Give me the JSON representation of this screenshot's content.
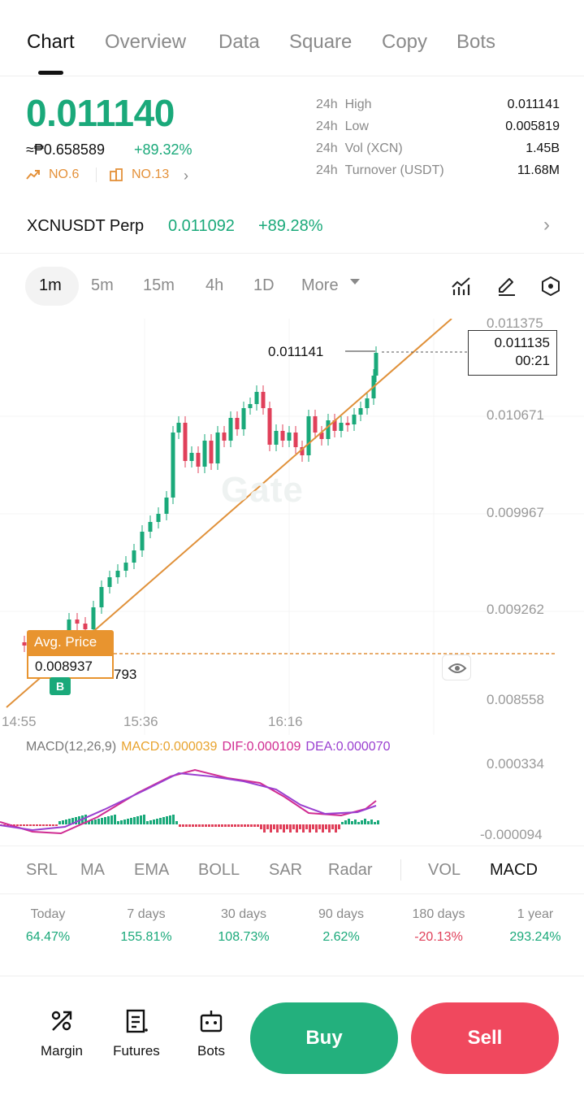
{
  "tabs": [
    "Chart",
    "Overview",
    "Data",
    "Square",
    "Copy",
    "Bots"
  ],
  "price": {
    "last": "0.011140",
    "fiat": "≈₱0.658589",
    "change_pct": "+89.32%",
    "rank_trend": "NO.6",
    "rank_sector": "NO.13"
  },
  "stats": [
    {
      "period": "24h",
      "label": "High",
      "value": "0.011141"
    },
    {
      "period": "24h",
      "label": "Low",
      "value": "0.005819"
    },
    {
      "period": "24h",
      "label": "Vol (XCN)",
      "value": "1.45B"
    },
    {
      "period": "24h",
      "label": "Turnover (USDT)",
      "value": "11.68M"
    }
  ],
  "perp": {
    "name": "XCNUSDT Perp",
    "price": "0.011092",
    "change_pct": "+89.28%"
  },
  "intervals": [
    "1m",
    "5m",
    "15m",
    "4h",
    "1D",
    "More"
  ],
  "chart": {
    "watermark": "Gate",
    "y_ticks": [
      "0.011375",
      "0.010671",
      "0.009967",
      "0.009262",
      "0.008558"
    ],
    "x_ticks": [
      "14:55",
      "15:36",
      "16:16"
    ],
    "high_marker": "0.011141",
    "last_price": "0.011135",
    "countdown": "00:21",
    "avg_price_label": "Avg. Price",
    "avg_price_value": "0.008937",
    "low_marker_suffix": "793",
    "buy_badge": "B",
    "colors": {
      "up": "#1aa97a",
      "down": "#e0405a",
      "trendline": "#e0913a"
    }
  },
  "macd": {
    "title": "MACD(12,26,9)",
    "macd": "MACD:0.000039",
    "dif": "DIF:0.000109",
    "dea": "DEA:0.000070",
    "y_ticks": [
      "0.000334",
      "-0.000094"
    ],
    "colors": {
      "macd": "#e8a32d",
      "dif": "#d02c92",
      "dea": "#9a3fd0"
    }
  },
  "indicators": [
    "SRL",
    "MA",
    "EMA",
    "BOLL",
    "SAR",
    "Radar",
    "VOL",
    "MACD"
  ],
  "performance": [
    {
      "period": "Today",
      "value": "64.47%",
      "sign": "pos"
    },
    {
      "period": "7 days",
      "value": "155.81%",
      "sign": "pos"
    },
    {
      "period": "30 days",
      "value": "108.73%",
      "sign": "pos"
    },
    {
      "period": "90 days",
      "value": "2.62%",
      "sign": "pos"
    },
    {
      "period": "180 days",
      "value": "-20.13%",
      "sign": "neg"
    },
    {
      "period": "1 year",
      "value": "293.24%",
      "sign": "pos"
    }
  ],
  "bottom": {
    "margin": "Margin",
    "futures": "Futures",
    "bots": "Bots",
    "buy": "Buy",
    "sell": "Sell"
  }
}
